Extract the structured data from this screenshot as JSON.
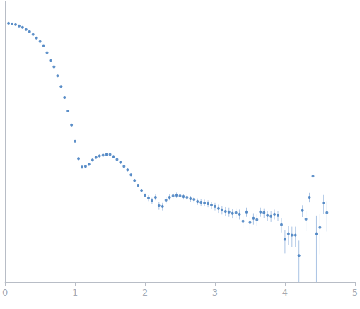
{
  "chart_data": {
    "type": "scatter",
    "log": "y",
    "tick_labels": "x",
    "color": "#3b78bd",
    "marker": "circle",
    "x": [
      0.05,
      0.1,
      0.15,
      0.2,
      0.25,
      0.3,
      0.35,
      0.4,
      0.45,
      0.5,
      0.55,
      0.6,
      0.65,
      0.7,
      0.75,
      0.8,
      0.85,
      0.9,
      0.95,
      1.0,
      1.05,
      1.1,
      1.15,
      1.2,
      1.25,
      1.3,
      1.35,
      1.4,
      1.45,
      1.5,
      1.55,
      1.6,
      1.65,
      1.7,
      1.75,
      1.8,
      1.85,
      1.9,
      1.95,
      2.0,
      2.05,
      2.1,
      2.15,
      2.2,
      2.25,
      2.3,
      2.35,
      2.4,
      2.45,
      2.5,
      2.55,
      2.6,
      2.65,
      2.7,
      2.75,
      2.8,
      2.85,
      2.9,
      2.95,
      3.0,
      3.05,
      3.1,
      3.15,
      3.2,
      3.25,
      3.3,
      3.35,
      3.4,
      3.45,
      3.5,
      3.55,
      3.6,
      3.65,
      3.7,
      3.75,
      3.8,
      3.85,
      3.9,
      3.95,
      4.0,
      4.05,
      4.1,
      4.15,
      4.2,
      4.25,
      4.3,
      4.35,
      4.4,
      4.45,
      4.5,
      4.55,
      4.6
    ],
    "values": [
      0.977,
      0.955,
      0.933,
      0.891,
      0.851,
      0.794,
      0.741,
      0.676,
      0.603,
      0.537,
      0.468,
      0.372,
      0.288,
      0.234,
      0.174,
      0.123,
      0.0851,
      0.055,
      0.0347,
      0.0204,
      0.0115,
      0.00871,
      0.00891,
      0.00955,
      0.011,
      0.012,
      0.0126,
      0.0129,
      0.0132,
      0.0132,
      0.0123,
      0.0112,
      0.0102,
      0.00891,
      0.00794,
      0.00676,
      0.00562,
      0.00479,
      0.00407,
      0.00347,
      0.00316,
      0.00288,
      0.00324,
      0.00245,
      0.0024,
      0.00295,
      0.00324,
      0.00339,
      0.00347,
      0.00339,
      0.00331,
      0.00324,
      0.00309,
      0.00302,
      0.00282,
      0.00275,
      0.00269,
      0.00263,
      0.00251,
      0.0024,
      0.00224,
      0.00214,
      0.00204,
      0.002,
      0.00191,
      0.00195,
      0.00186,
      0.00148,
      0.002,
      0.00141,
      0.00162,
      0.00155,
      0.002,
      0.00195,
      0.00178,
      0.00174,
      0.00186,
      0.00178,
      0.00132,
      0.000813,
      0.000977,
      0.000933,
      0.000933,
      0.000479,
      0.00209,
      0.00158,
      0.00324,
      0.00646,
      0.000977,
      0.0012,
      0.00269,
      0.00195
    ],
    "y_err": [
      0.02,
      0.019,
      0.019,
      0.018,
      0.017,
      0.016,
      0.015,
      0.014,
      0.012,
      0.011,
      0.009,
      0.007,
      0.006,
      0.005,
      0.003,
      0.002,
      0.002,
      0.001,
      0.0007,
      0.0004,
      0.0006,
      0.0004,
      0.0004,
      0.0005,
      0.0005,
      0.0006,
      0.0006,
      0.0006,
      0.0007,
      0.0007,
      0.0006,
      0.0006,
      0.0005,
      0.0004,
      0.0004,
      0.0003,
      0.0003,
      0.0002,
      0.0002,
      0.0002,
      0.0003,
      0.0003,
      0.0003,
      0.0003,
      0.0003,
      0.0003,
      0.0003,
      0.0003,
      0.0003,
      0.0003,
      0.0003,
      0.0003,
      0.0003,
      0.0003,
      0.0003,
      0.0003,
      0.0003,
      0.0003,
      0.0003,
      0.0003,
      0.0003,
      0.0003,
      0.0003,
      0.0003,
      0.0003,
      0.0003,
      0.0003,
      0.0003,
      0.0003,
      0.0003,
      0.0003,
      0.0003,
      0.0003,
      0.0003,
      0.0003,
      0.0003,
      0.0003,
      0.0003,
      0.0003,
      0.0003,
      0.0003,
      0.0003,
      0.0003,
      0.0003,
      0.0004,
      0.0005,
      0.0005,
      0.0006,
      0.0008,
      0.0007,
      0.0008,
      0.0009
    ],
    "xlim": [
      0,
      5
    ],
    "xticks": [
      0,
      1,
      2,
      3,
      4,
      5
    ],
    "ylim": [
      0.0002,
      2
    ],
    "yticks": [
      0.001,
      0.01,
      0.1,
      1
    ]
  }
}
